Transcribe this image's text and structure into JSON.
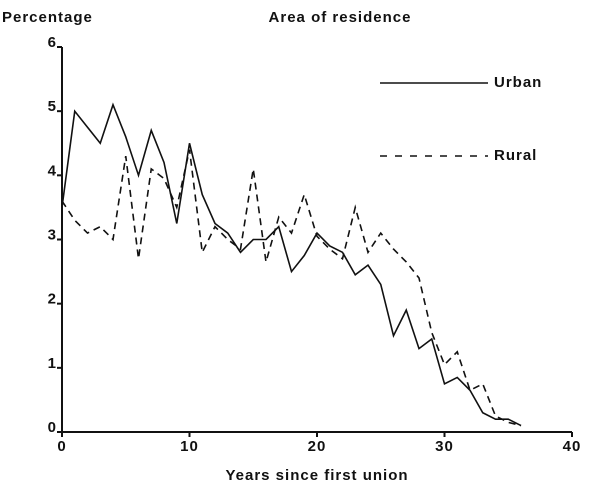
{
  "chart_data": {
    "type": "line",
    "title": "Area of residence",
    "y_label": "Percentage",
    "x_label": "Years since first union",
    "x": [
      0,
      1,
      2,
      3,
      4,
      5,
      6,
      7,
      8,
      9,
      10,
      11,
      12,
      13,
      14,
      15,
      16,
      17,
      18,
      19,
      20,
      21,
      22,
      23,
      24,
      25,
      26,
      27,
      28,
      29,
      30,
      31,
      32,
      33,
      34,
      35,
      36
    ],
    "series": [
      {
        "name": "Urban",
        "color": "#111111",
        "style": "solid",
        "values": [
          3.5,
          5.0,
          4.75,
          4.5,
          5.1,
          4.6,
          4.0,
          4.7,
          4.2,
          3.25,
          4.5,
          3.7,
          3.25,
          3.1,
          2.8,
          3.0,
          3.0,
          3.2,
          2.5,
          2.75,
          3.1,
          2.9,
          2.8,
          2.45,
          2.6,
          2.3,
          1.5,
          1.9,
          1.3,
          1.45,
          0.75,
          0.85,
          0.65,
          0.3,
          0.2,
          0.2,
          0.1
        ]
      },
      {
        "name": "Rural",
        "color": "#111111",
        "style": "dashed",
        "values": [
          3.6,
          3.3,
          3.1,
          3.2,
          3.0,
          4.3,
          2.7,
          4.1,
          3.95,
          3.5,
          4.4,
          2.8,
          3.2,
          3.0,
          2.85,
          4.1,
          2.65,
          3.35,
          3.1,
          3.7,
          3.05,
          2.85,
          2.7,
          3.5,
          2.8,
          3.1,
          2.85,
          2.65,
          2.4,
          1.55,
          1.05,
          1.25,
          0.65,
          0.75,
          0.25,
          0.15,
          0.1
        ]
      }
    ],
    "xlim": [
      0,
      40
    ],
    "xticks": [
      0,
      10,
      20,
      30,
      40
    ],
    "ylim": [
      0,
      6
    ],
    "yticks": [
      0,
      1,
      2,
      3,
      4,
      5,
      6
    ],
    "grid": false
  }
}
